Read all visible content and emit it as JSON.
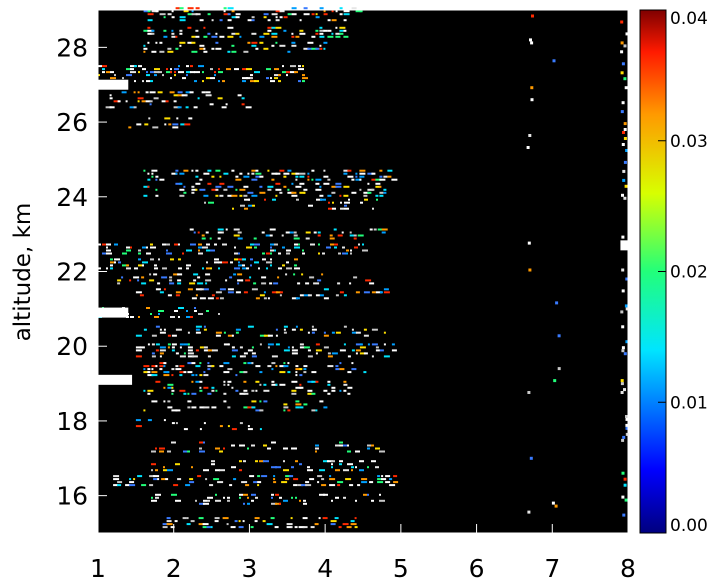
{
  "chart_data": {
    "type": "heatmap",
    "title": "",
    "xlabel": "",
    "ylabel": "altitude, km",
    "xlim": [
      1,
      8
    ],
    "ylim": [
      15,
      29
    ],
    "x_ticks": [
      "1",
      "2",
      "3",
      "4",
      "5",
      "6",
      "7",
      "8"
    ],
    "y_ticks": [
      "16",
      "18",
      "20",
      "22",
      "24",
      "26",
      "28"
    ],
    "colorbar": {
      "range": [
        0,
        0.04
      ],
      "ticks": [
        "0.00",
        "0.01",
        "0.02",
        "0.03",
        "0.04"
      ],
      "colormap": "rainbow"
    },
    "background_color": "#000000",
    "description_features": [
      {
        "x": [
          1.0,
          1.45
        ],
        "y": 19.1,
        "value": "saturated"
      },
      {
        "x": [
          1.0,
          1.4
        ],
        "y": 20.9,
        "value": "saturated"
      },
      {
        "x": [
          1.0,
          1.4
        ],
        "y": 27.0,
        "value": "saturated"
      },
      {
        "x": [
          7.9,
          8.0
        ],
        "y": 22.7,
        "value": "saturated"
      }
    ]
  }
}
